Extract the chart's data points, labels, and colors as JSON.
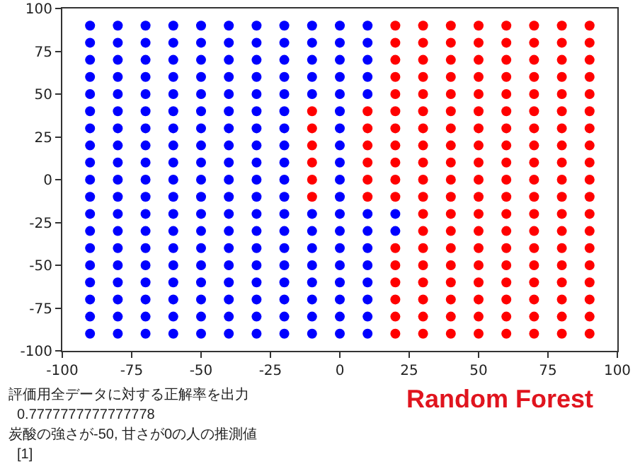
{
  "chart_data": {
    "type": "scatter",
    "xlim": [
      -100,
      100
    ],
    "ylim": [
      -100,
      100
    ],
    "xticks": [
      -100,
      -75,
      -50,
      -25,
      0,
      25,
      50,
      75,
      100
    ],
    "yticks": [
      -100,
      -75,
      -50,
      -25,
      0,
      25,
      50,
      75,
      100
    ],
    "grid": false,
    "marker": "circle",
    "annotations": [
      "評価用全データに対する正解率を出力",
      "Random Forest",
      "0.7777777777777778",
      "炭酸の強さが-50, 甘さが0の人の推測値",
      "[1]"
    ],
    "series": [
      {
        "color": "#0000ff",
        "x": [
          -90,
          -90,
          -90,
          -90,
          -90,
          -90,
          -90,
          -90,
          -90,
          -90,
          -90,
          -90,
          -90,
          -90,
          -90,
          -90,
          -90,
          -90,
          -90,
          -80,
          -80,
          -80,
          -80,
          -80,
          -80,
          -80,
          -80,
          -80,
          -80,
          -80,
          -80,
          -80,
          -80,
          -80,
          -80,
          -80,
          -80,
          -80,
          -70,
          -70,
          -70,
          -70,
          -70,
          -70,
          -70,
          -70,
          -70,
          -70,
          -70,
          -70,
          -70,
          -70,
          -70,
          -70,
          -70,
          -70,
          -70,
          -60,
          -60,
          -60,
          -60,
          -60,
          -60,
          -60,
          -60,
          -60,
          -60,
          -60,
          -60,
          -60,
          -60,
          -60,
          -60,
          -60,
          -60,
          -60,
          -50,
          -50,
          -50,
          -50,
          -50,
          -50,
          -50,
          -50,
          -50,
          -50,
          -50,
          -50,
          -50,
          -50,
          -50,
          -50,
          -50,
          -50,
          -50,
          -40,
          -40,
          -40,
          -40,
          -40,
          -40,
          -40,
          -40,
          -40,
          -40,
          -40,
          -40,
          -40,
          -40,
          -40,
          -40,
          -40,
          -40,
          -40,
          -30,
          -30,
          -30,
          -30,
          -30,
          -30,
          -30,
          -30,
          -30,
          -30,
          -30,
          -30,
          -30,
          -30,
          -30,
          -30,
          -30,
          -30,
          -30,
          -20,
          -20,
          -20,
          -20,
          -20,
          -20,
          -20,
          -20,
          -20,
          -20,
          -20,
          -20,
          -20,
          -20,
          -20,
          -20,
          -20,
          -20,
          -20,
          -10,
          -10,
          -10,
          -10,
          -10,
          -10,
          -10,
          -10,
          -10,
          -10,
          -10,
          -10,
          -10,
          0,
          0,
          0,
          0,
          0,
          0,
          0,
          0,
          0,
          0,
          0,
          0,
          0,
          0,
          0,
          0,
          0,
          0,
          0,
          10,
          10,
          10,
          10,
          10,
          10,
          10,
          10,
          10,
          10,
          10,
          10,
          10,
          20,
          20
        ],
        "values": [
          90,
          80,
          70,
          60,
          50,
          40,
          30,
          20,
          10,
          0,
          -10,
          -20,
          -30,
          -40,
          -50,
          -60,
          -70,
          -80,
          -90,
          90,
          80,
          70,
          60,
          50,
          40,
          30,
          20,
          10,
          0,
          -10,
          -20,
          -30,
          -40,
          -50,
          -60,
          -70,
          -80,
          -90,
          90,
          80,
          70,
          60,
          50,
          40,
          30,
          20,
          10,
          0,
          -10,
          -20,
          -30,
          -40,
          -50,
          -60,
          -70,
          -80,
          -90,
          90,
          80,
          70,
          60,
          50,
          40,
          30,
          20,
          10,
          0,
          -10,
          -20,
          -30,
          -40,
          -50,
          -60,
          -70,
          -80,
          -90,
          90,
          80,
          70,
          60,
          50,
          40,
          30,
          20,
          10,
          0,
          -10,
          -20,
          -30,
          -40,
          -50,
          -60,
          -70,
          -80,
          -90,
          90,
          80,
          70,
          60,
          50,
          40,
          30,
          20,
          10,
          0,
          -10,
          -20,
          -30,
          -40,
          -50,
          -60,
          -70,
          -80,
          -90,
          90,
          80,
          70,
          60,
          50,
          40,
          30,
          20,
          10,
          0,
          -10,
          -20,
          -30,
          -40,
          -50,
          -60,
          -70,
          -80,
          -90,
          90,
          80,
          70,
          60,
          50,
          40,
          30,
          20,
          10,
          0,
          -10,
          -20,
          -30,
          -40,
          -50,
          -60,
          -70,
          -80,
          -90,
          90,
          80,
          70,
          60,
          50,
          -20,
          -30,
          -40,
          -50,
          -60,
          -70,
          -80,
          -90,
          90,
          80,
          70,
          60,
          50,
          40,
          30,
          20,
          10,
          0,
          -10,
          -20,
          -30,
          -40,
          -50,
          -60,
          -70,
          -80,
          -90,
          90,
          80,
          70,
          60,
          50,
          -20,
          -30,
          -40,
          -50,
          -60,
          -70,
          -80,
          -90,
          -20,
          -30
        ]
      },
      {
        "color": "#ff0000",
        "x": [
          -10,
          -10,
          -10,
          -10,
          -10,
          -10,
          10,
          10,
          10,
          10,
          10,
          10,
          20,
          20,
          20,
          20,
          20,
          20,
          20,
          20,
          20,
          20,
          20,
          20,
          20,
          20,
          20,
          20,
          20,
          30,
          30,
          30,
          30,
          30,
          30,
          30,
          30,
          30,
          30,
          30,
          30,
          30,
          30,
          30,
          30,
          30,
          30,
          30,
          40,
          40,
          40,
          40,
          40,
          40,
          40,
          40,
          40,
          40,
          40,
          40,
          40,
          40,
          40,
          40,
          40,
          40,
          40,
          50,
          50,
          50,
          50,
          50,
          50,
          50,
          50,
          50,
          50,
          50,
          50,
          50,
          50,
          50,
          50,
          50,
          50,
          50,
          60,
          60,
          60,
          60,
          60,
          60,
          60,
          60,
          60,
          60,
          60,
          60,
          60,
          60,
          60,
          60,
          60,
          60,
          60,
          70,
          70,
          70,
          70,
          70,
          70,
          70,
          70,
          70,
          70,
          70,
          70,
          70,
          70,
          70,
          70,
          70,
          70,
          70,
          80,
          80,
          80,
          80,
          80,
          80,
          80,
          80,
          80,
          80,
          80,
          80,
          80,
          80,
          80,
          80,
          80,
          80,
          80,
          90,
          90,
          90,
          90,
          90,
          90,
          90,
          90,
          90,
          90,
          90,
          90,
          90,
          90,
          90,
          90,
          90,
          90,
          90
        ],
        "values": [
          40,
          30,
          20,
          10,
          0,
          -10,
          40,
          30,
          20,
          10,
          0,
          -10,
          90,
          80,
          70,
          60,
          50,
          40,
          30,
          20,
          10,
          0,
          -10,
          -40,
          -50,
          -60,
          -70,
          -80,
          -90,
          90,
          80,
          70,
          60,
          50,
          40,
          30,
          20,
          10,
          0,
          -10,
          -20,
          -30,
          -40,
          -50,
          -60,
          -70,
          -80,
          -90,
          90,
          80,
          70,
          60,
          50,
          40,
          30,
          20,
          10,
          0,
          -10,
          -20,
          -30,
          -40,
          -50,
          -60,
          -70,
          -80,
          -90,
          90,
          80,
          70,
          60,
          50,
          40,
          30,
          20,
          10,
          0,
          -10,
          -20,
          -30,
          -40,
          -50,
          -60,
          -70,
          -80,
          -90,
          90,
          80,
          70,
          60,
          50,
          40,
          30,
          20,
          10,
          0,
          -10,
          -20,
          -30,
          -40,
          -50,
          -60,
          -70,
          -80,
          -90,
          90,
          80,
          70,
          60,
          50,
          40,
          30,
          20,
          10,
          0,
          -10,
          -20,
          -30,
          -40,
          -50,
          -60,
          -70,
          -80,
          -90,
          90,
          80,
          70,
          60,
          50,
          40,
          30,
          20,
          10,
          0,
          -10,
          -20,
          -30,
          -40,
          -50,
          -60,
          -70,
          -80,
          -90,
          90,
          80,
          70,
          60,
          50,
          40,
          30,
          20,
          10,
          0,
          -10,
          -20,
          -30,
          -40,
          -50,
          -60,
          -70,
          -80,
          -90
        ]
      }
    ]
  }
}
